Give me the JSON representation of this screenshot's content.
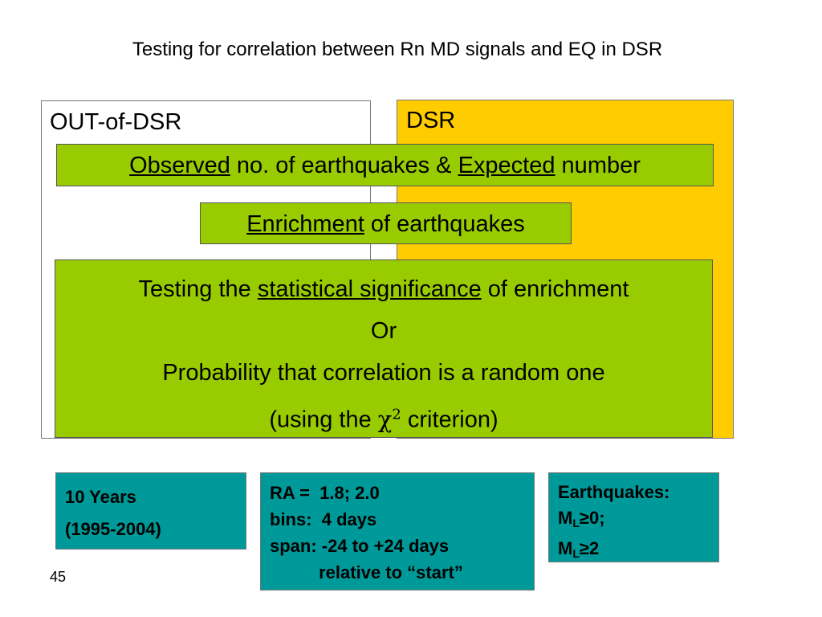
{
  "title": "Testing for correlation between Rn MD signals and EQ in DSR",
  "out_label": "OUT-of-DSR",
  "dsr_label": "DSR",
  "box1": {
    "w1": "Observed",
    "t1": " no. of earthquakes & ",
    "w2": "Expected",
    "t2": " number"
  },
  "box2": {
    "w1": "Enrichment",
    "t1": " of earthquakes"
  },
  "box3": {
    "l1_pre": "Testing the ",
    "l1_u": "statistical significance",
    "l1_post": " of enrichment",
    "l2": "Or",
    "l3": "Probability that correlation is a random one",
    "l4_pre": "(using the ",
    "chi": "χ",
    "chi_exp": "2",
    "l4_post": " criterion)"
  },
  "info1": [
    "10 Years",
    "(1995-2004)"
  ],
  "info2": [
    "RA =  1.8; 2.0",
    "bins:  4 days",
    "span: -24 to +24 days",
    "          relative to “start”"
  ],
  "info3": {
    "l1": "Earthquakes:",
    "l2_m": "M",
    "l2_sub": "L",
    "l2_rest": "≥0;",
    "l3_m": "M",
    "l3_sub": "L",
    "l3_rest": "≥2"
  },
  "page_number": "45",
  "colors": {
    "dsr": "#ffcc00",
    "green": "#99cc00",
    "teal": "#009999"
  }
}
